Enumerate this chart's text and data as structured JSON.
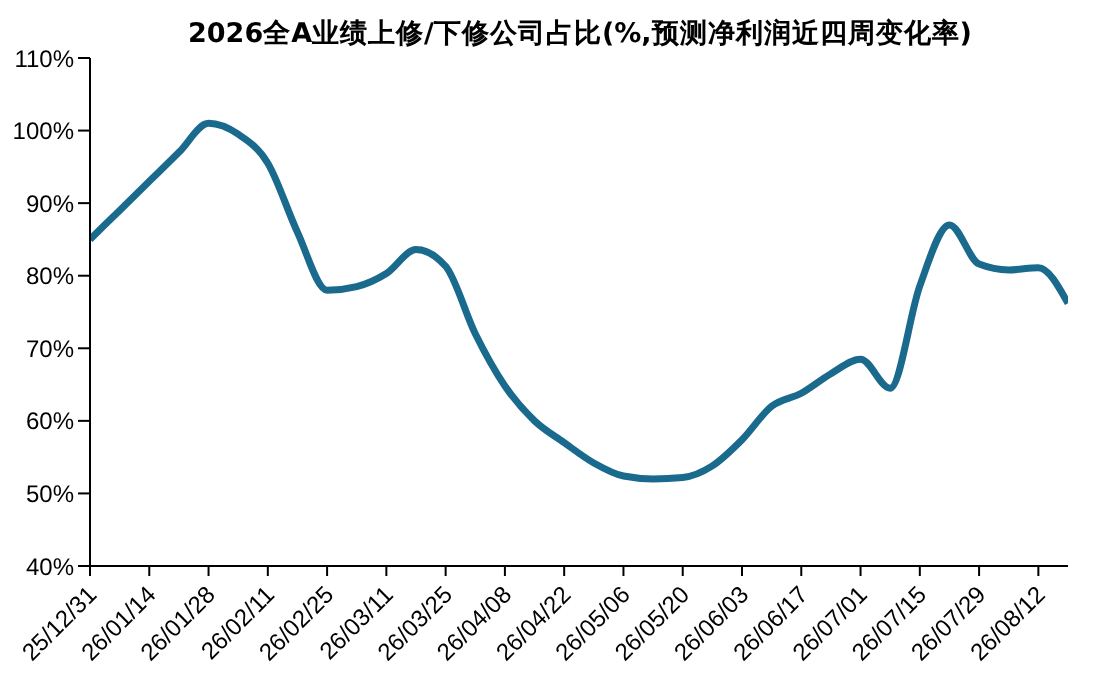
{
  "chart_data": {
    "type": "line",
    "title": "2026全A业绩上修/下修公司占比(%,预测净利润近四周变化率)",
    "categories": [
      "25/12/31",
      null,
      "26/01/14",
      null,
      "26/01/28",
      null,
      "26/02/11",
      null,
      "26/02/25",
      null,
      "26/03/11",
      null,
      "26/03/25",
      null,
      "26/04/08",
      null,
      "26/04/22",
      null,
      "26/05/06",
      null,
      "26/05/20",
      null,
      "26/06/03",
      null,
      "26/06/17",
      null,
      "26/07/01",
      null,
      "26/07/15",
      null,
      "26/07/29",
      null,
      "26/08/12",
      null
    ],
    "series": [
      {
        "color": "#1a6a8e",
        "values": [
          85,
          89,
          93,
          97,
          101,
          99.5,
          95.5,
          86,
          78,
          78.5,
          80.3,
          83.6,
          81.3,
          72,
          64.8,
          60,
          57,
          54.2,
          52.4,
          52,
          52.2,
          53.8,
          57.4,
          62,
          63.8,
          66.5,
          68.5,
          64.5,
          78.6,
          87,
          81.6,
          80.8,
          81.1,
          76.2
        ]
      }
    ],
    "ylim": [
      40,
      110
    ],
    "yticks": [
      {
        "value": 40,
        "label": "40%"
      },
      {
        "value": 50,
        "label": "50%"
      },
      {
        "value": 60,
        "label": "60%"
      },
      {
        "value": 70,
        "label": "70%"
      },
      {
        "value": 80,
        "label": "80%"
      },
      {
        "value": 90,
        "label": "90%"
      },
      {
        "value": 100,
        "label": "100%"
      },
      {
        "value": 110,
        "label": "110%"
      }
    ],
    "grid": false,
    "legend": false,
    "marker": "none",
    "line_style": "solid"
  }
}
